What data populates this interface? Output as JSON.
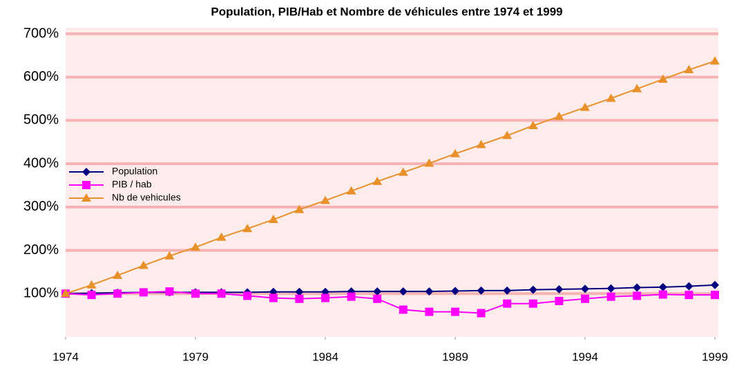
{
  "chart_data": {
    "type": "line",
    "title": "Population, PIB/Hab et  Nombre de véhicules entre 1974 et 1999",
    "x": [
      1974,
      1975,
      1976,
      1977,
      1978,
      1979,
      1980,
      1981,
      1982,
      1983,
      1984,
      1985,
      1986,
      1987,
      1988,
      1989,
      1990,
      1991,
      1992,
      1993,
      1994,
      1995,
      1996,
      1997,
      1998,
      1999
    ],
    "series": [
      {
        "name": "Population",
        "color": "#000080",
        "marker": "diamond",
        "values": [
          100,
          101,
          102,
          103,
          103,
          103,
          103,
          103,
          104,
          104,
          104,
          105,
          105,
          105,
          105,
          106,
          107,
          107,
          109,
          110,
          111,
          112,
          114,
          115,
          117,
          120
        ]
      },
      {
        "name": "PIB / hab",
        "color": "#ff00ff",
        "marker": "square",
        "values": [
          100,
          97,
          100,
          103,
          105,
          100,
          100,
          95,
          90,
          88,
          90,
          93,
          88,
          63,
          58,
          58,
          55,
          77,
          77,
          83,
          88,
          93,
          95,
          98,
          97,
          97
        ]
      },
      {
        "name": "Nb de vehicules",
        "color": "#e8902a",
        "marker": "triangle",
        "values": [
          100,
          120,
          142,
          165,
          187,
          207,
          230,
          250,
          271,
          294,
          315,
          337,
          359,
          380,
          401,
          423,
          444,
          465,
          488,
          509,
          530,
          551,
          573,
          595,
          617,
          637
        ]
      }
    ],
    "xlim": [
      1974,
      1999
    ],
    "xticks": [
      1974,
      1979,
      1984,
      1989,
      1994,
      1999
    ],
    "ylim": [
      0,
      700
    ],
    "yticks": [
      {
        "value": 100,
        "label": "100%"
      },
      {
        "value": 200,
        "label": "200%"
      },
      {
        "value": 300,
        "label": "300%"
      },
      {
        "value": 400,
        "label": "400%"
      },
      {
        "value": 500,
        "label": "500%"
      },
      {
        "value": 600,
        "label": "600%"
      },
      {
        "value": 700,
        "label": "700%"
      }
    ],
    "grid": true,
    "legend": "left"
  }
}
